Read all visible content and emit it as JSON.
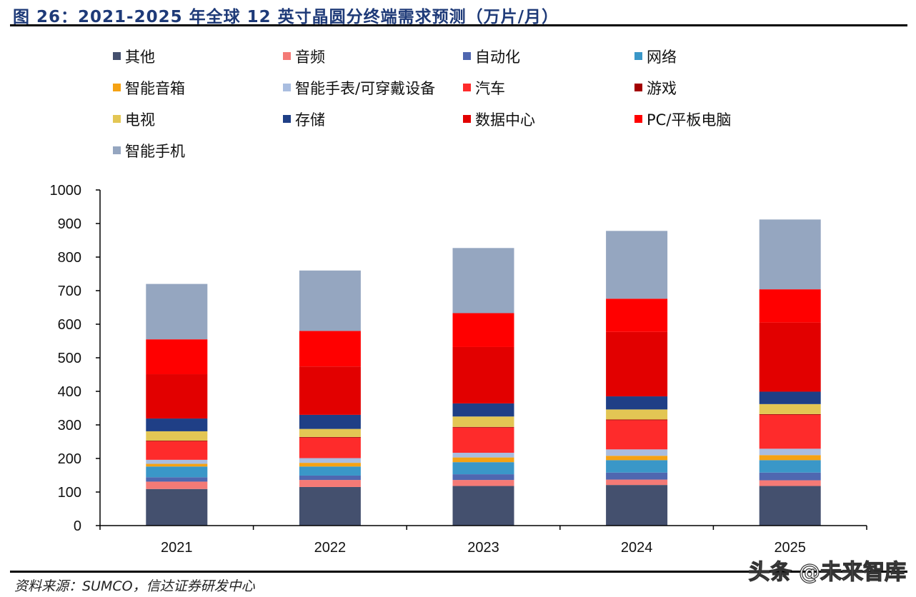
{
  "title": "图 26：2021-2025 年全球 12 英寸晶圆分终端需求预测（万片/月）",
  "source": "资料来源：SUMCO，信达证券研发中心",
  "watermark": "头条 @未来智库",
  "chart_data": {
    "type": "bar",
    "stacked": true,
    "title": "图 26：2021-2025 年全球 12 英寸晶圆分终端需求预测（万片/月）",
    "xlabel": "",
    "ylabel": "",
    "ylim": [
      0,
      1000
    ],
    "yticks": [
      0,
      100,
      200,
      300,
      400,
      500,
      600,
      700,
      800,
      900,
      1000
    ],
    "grid": false,
    "legend_position": "top",
    "categories": [
      "2021",
      "2022",
      "2023",
      "2024",
      "2025"
    ],
    "series": [
      {
        "name": "其他",
        "color": "#44506e",
        "values": [
          109,
          115,
          118,
          121,
          118
        ]
      },
      {
        "name": "音频",
        "color": "#f47a76",
        "values": [
          22,
          21,
          18,
          16,
          17
        ]
      },
      {
        "name": "自动化",
        "color": "#4f67b0",
        "values": [
          13,
          13,
          17,
          21,
          23
        ]
      },
      {
        "name": "网络",
        "color": "#3a97c8",
        "values": [
          32,
          27,
          36,
          37,
          37
        ]
      },
      {
        "name": "智能音箱",
        "color": "#f5a214",
        "values": [
          8,
          11,
          14,
          13,
          15
        ]
      },
      {
        "name": "智能手表/可穿戴设备",
        "color": "#a9bde0",
        "values": [
          12,
          14,
          14,
          19,
          19
        ]
      },
      {
        "name": "汽车",
        "color": "#fe2b2b",
        "values": [
          55,
          61,
          75,
          87,
          101
        ]
      },
      {
        "name": "游戏",
        "color": "#a30000",
        "values": [
          2,
          2,
          2,
          2,
          2
        ]
      },
      {
        "name": "电视",
        "color": "#e3c654",
        "values": [
          28,
          24,
          31,
          30,
          30
        ]
      },
      {
        "name": "存储",
        "color": "#1f3f86",
        "values": [
          38,
          42,
          39,
          39,
          37
        ]
      },
      {
        "name": "数据中心",
        "color": "#e20000",
        "values": [
          132,
          144,
          168,
          192,
          206
        ]
      },
      {
        "name": "PC/平板电脑",
        "color": "#ff0000",
        "values": [
          104,
          106,
          101,
          99,
          99
        ]
      },
      {
        "name": "智能手机",
        "color": "#95a6c0",
        "values": [
          165,
          180,
          194,
          202,
          208
        ]
      }
    ]
  }
}
